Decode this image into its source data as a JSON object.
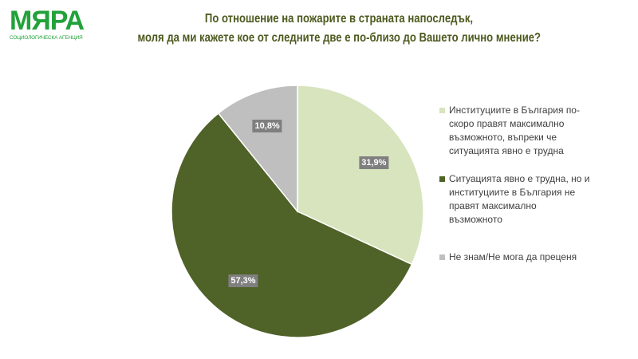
{
  "logo": {
    "name": "МЯРА",
    "subtitle": "СОЦИОЛОГИЧЕСКА АГЕНЦИЯ"
  },
  "title_line1": "По отношение на пожарите в страната напоследък,",
  "title_line2": "моля да ми кажете кое от следните две е по-близо до Вашето лично мнение?",
  "chart_data": {
    "type": "pie",
    "title": "По отношение на пожарите в страната напоследък, моля да ми кажете кое от следните две е по-близо до Вашето лично мнение?",
    "legend_position": "right",
    "slices": [
      {
        "name": "Институциите в България по-скоро правят максимално възможното, въпреки че ситуацията явно е трудна",
        "value": 31.9,
        "label": "31,9%",
        "color": "#d7e4bd"
      },
      {
        "name": "Ситуацията явно е трудна, но и институциите в България не правят максимално възможното",
        "value": 57.3,
        "label": "57,3%",
        "color": "#4f6228"
      },
      {
        "name": "Не знам/Не мога да преценя",
        "value": 10.8,
        "label": "10,8%",
        "color": "#bfbfbf"
      }
    ]
  }
}
